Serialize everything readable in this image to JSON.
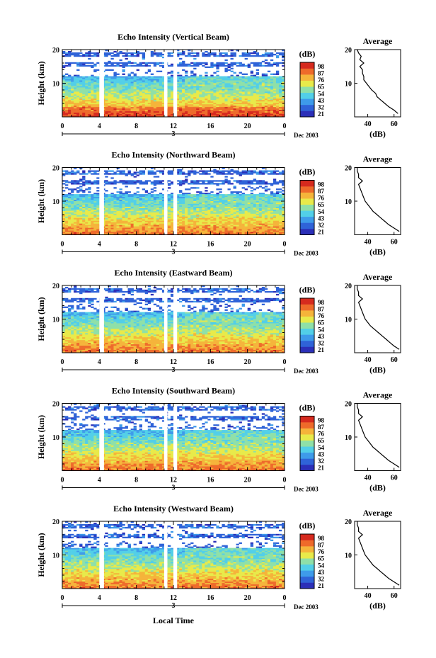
{
  "footer": {
    "xlabel": "Local Time"
  },
  "colorbar": {
    "unit": "(dB)",
    "colors": [
      "#2b2fb8",
      "#2f63d8",
      "#3e9bea",
      "#52cfe8",
      "#8fe0a8",
      "#e8ea4a",
      "#f5b43a",
      "#ee6a2a",
      "#d62a1e"
    ]
  },
  "chart_data": [
    {
      "type": "heatmap",
      "title": "Echo Intensity (Vertical Beam)",
      "ylabel": "Height (km)",
      "ylim": [
        0,
        20
      ],
      "yticks": [
        "20",
        "10"
      ],
      "xlim": [
        0,
        24
      ],
      "xticks": [
        "0",
        "4",
        "8",
        "12",
        "16",
        "20",
        "0"
      ],
      "day_marker": "3",
      "date_label": "Dec 2003",
      "colorbar_unit": "(dB)",
      "colorbar_ticks": [
        "98",
        "87",
        "76",
        "65",
        "54",
        "43",
        "32",
        "21"
      ],
      "gaps_hours": [
        [
          4.0,
          4.5
        ],
        [
          11.0,
          11.35
        ],
        [
          12.0,
          12.4
        ]
      ],
      "profile": {
        "title": "Average",
        "xlabel": "(dB)",
        "xticks": [
          "40",
          "60"
        ],
        "xlim": [
          30,
          65
        ],
        "points": [
          [
            63,
            1
          ],
          [
            60,
            2
          ],
          [
            56,
            3
          ],
          [
            53,
            4
          ],
          [
            50,
            5
          ],
          [
            47,
            6
          ],
          [
            46,
            7
          ],
          [
            43,
            8
          ],
          [
            41,
            9
          ],
          [
            39,
            10
          ],
          [
            37,
            11
          ],
          [
            37,
            12
          ],
          [
            36,
            13
          ],
          [
            36,
            14
          ],
          [
            34,
            15
          ],
          [
            37,
            16
          ],
          [
            34,
            17
          ],
          [
            35,
            18
          ],
          [
            33,
            19
          ],
          [
            32,
            20
          ]
        ]
      }
    },
    {
      "type": "heatmap",
      "title": "Echo Intensity (Northward Beam)",
      "ylabel": "Height (km)",
      "ylim": [
        0,
        20
      ],
      "yticks": [
        "20",
        "10"
      ],
      "xlim": [
        0,
        24
      ],
      "xticks": [
        "0",
        "4",
        "8",
        "12",
        "16",
        "20",
        "0"
      ],
      "day_marker": "3",
      "date_label": "Dec 2003",
      "colorbar_unit": "(dB)",
      "colorbar_ticks": [
        "98",
        "87",
        "76",
        "65",
        "54",
        "43",
        "32",
        "21"
      ],
      "gaps_hours": [
        [
          4.0,
          4.5
        ],
        [
          11.0,
          11.35
        ],
        [
          12.0,
          12.4
        ]
      ],
      "profile": {
        "title": "Average",
        "xlabel": "(dB)",
        "xticks": [
          "40",
          "60"
        ],
        "xlim": [
          30,
          65
        ],
        "points": [
          [
            64,
            1
          ],
          [
            60,
            2
          ],
          [
            56,
            3
          ],
          [
            53,
            4
          ],
          [
            50,
            5
          ],
          [
            47,
            6
          ],
          [
            44,
            7
          ],
          [
            42,
            8
          ],
          [
            40,
            9
          ],
          [
            38,
            10
          ],
          [
            37,
            11
          ],
          [
            36,
            12
          ],
          [
            35,
            13
          ],
          [
            34,
            14
          ],
          [
            33,
            15
          ],
          [
            36,
            16
          ],
          [
            33,
            17
          ],
          [
            33,
            18
          ],
          [
            32,
            19
          ],
          [
            32,
            20
          ]
        ]
      }
    },
    {
      "type": "heatmap",
      "title": "Echo Intensity (Eastward Beam)",
      "ylabel": "Height (km)",
      "ylim": [
        0,
        20
      ],
      "yticks": [
        "20",
        "10"
      ],
      "xlim": [
        0,
        24
      ],
      "xticks": [
        "0",
        "4",
        "8",
        "12",
        "16",
        "20",
        "0"
      ],
      "day_marker": "3",
      "date_label": "Dec 2003",
      "colorbar_unit": "(dB)",
      "colorbar_ticks": [
        "98",
        "87",
        "76",
        "65",
        "54",
        "43",
        "32",
        "21"
      ],
      "gaps_hours": [
        [
          4.0,
          4.5
        ],
        [
          11.0,
          11.35
        ],
        [
          12.0,
          12.4
        ]
      ],
      "profile": {
        "title": "Average",
        "xlabel": "(dB)",
        "xticks": [
          "40",
          "60"
        ],
        "xlim": [
          30,
          65
        ],
        "points": [
          [
            64,
            1
          ],
          [
            60,
            2
          ],
          [
            57,
            3
          ],
          [
            54,
            4
          ],
          [
            51,
            5
          ],
          [
            48,
            6
          ],
          [
            45,
            7
          ],
          [
            42,
            8
          ],
          [
            40,
            9
          ],
          [
            38,
            10
          ],
          [
            37,
            11
          ],
          [
            36,
            12
          ],
          [
            35,
            13
          ],
          [
            34,
            14
          ],
          [
            33,
            15
          ],
          [
            36,
            16
          ],
          [
            33,
            17
          ],
          [
            33,
            18
          ],
          [
            32,
            19
          ],
          [
            32,
            20
          ]
        ]
      }
    },
    {
      "type": "heatmap",
      "title": "Echo Intensity (Southward Beam)",
      "ylabel": "Height (km)",
      "ylim": [
        0,
        20
      ],
      "yticks": [
        "20",
        "10"
      ],
      "xlim": [
        0,
        24
      ],
      "xticks": [
        "0",
        "4",
        "8",
        "12",
        "16",
        "20",
        "0"
      ],
      "day_marker": "3",
      "date_label": "Dec 2003",
      "colorbar_unit": "(dB)",
      "colorbar_ticks": [
        "98",
        "87",
        "76",
        "65",
        "54",
        "43",
        "32",
        "21"
      ],
      "gaps_hours": [
        [
          4.0,
          4.5
        ],
        [
          11.0,
          11.35
        ],
        [
          12.0,
          12.4
        ]
      ],
      "profile": {
        "title": "Average",
        "xlabel": "(dB)",
        "xticks": [
          "40",
          "60"
        ],
        "xlim": [
          30,
          65
        ],
        "points": [
          [
            64,
            1
          ],
          [
            60,
            2
          ],
          [
            56,
            3
          ],
          [
            53,
            4
          ],
          [
            50,
            5
          ],
          [
            47,
            6
          ],
          [
            44,
            7
          ],
          [
            42,
            8
          ],
          [
            40,
            9
          ],
          [
            38,
            10
          ],
          [
            37,
            11
          ],
          [
            36,
            12
          ],
          [
            35,
            13
          ],
          [
            34,
            14
          ],
          [
            33,
            15
          ],
          [
            36,
            16
          ],
          [
            33,
            17
          ],
          [
            33,
            18
          ],
          [
            32,
            19
          ],
          [
            32,
            20
          ]
        ]
      }
    },
    {
      "type": "heatmap",
      "title": "Echo Intensity (Westward Beam)",
      "ylabel": "Height (km)",
      "ylim": [
        0,
        20
      ],
      "yticks": [
        "20",
        "10"
      ],
      "xlim": [
        0,
        24
      ],
      "xticks": [
        "0",
        "4",
        "8",
        "12",
        "16",
        "20",
        "0"
      ],
      "day_marker": "3",
      "date_label": "Dec 2003",
      "colorbar_unit": "(dB)",
      "colorbar_ticks": [
        "98",
        "87",
        "76",
        "65",
        "54",
        "43",
        "32",
        "21"
      ],
      "gaps_hours": [
        [
          4.0,
          4.5
        ],
        [
          11.0,
          11.35
        ],
        [
          12.0,
          12.4
        ]
      ],
      "profile": {
        "title": "Average",
        "xlabel": "(dB)",
        "xticks": [
          "40",
          "60"
        ],
        "xlim": [
          30,
          65
        ],
        "points": [
          [
            64,
            1
          ],
          [
            60,
            2
          ],
          [
            56,
            3
          ],
          [
            53,
            4
          ],
          [
            50,
            5
          ],
          [
            47,
            6
          ],
          [
            44,
            7
          ],
          [
            42,
            8
          ],
          [
            40,
            9
          ],
          [
            38,
            10
          ],
          [
            37,
            11
          ],
          [
            36,
            12
          ],
          [
            35,
            13
          ],
          [
            34,
            14
          ],
          [
            33,
            15
          ],
          [
            36,
            16
          ],
          [
            33,
            17
          ],
          [
            33,
            18
          ],
          [
            32,
            19
          ],
          [
            32,
            20
          ]
        ]
      }
    }
  ]
}
